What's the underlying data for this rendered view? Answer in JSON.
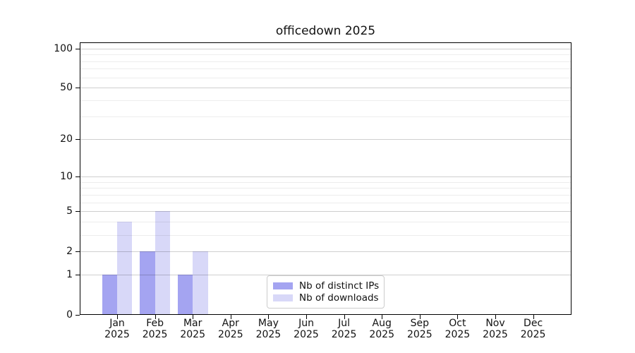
{
  "title": "officedown 2025",
  "colors": {
    "distinct_ips": "#a4a4f1",
    "downloads": "#d8d8f8",
    "grid_major": "#cfcfcf",
    "grid_minor": "#ededed",
    "axis": "#000000",
    "legend_border": "#cccccc"
  },
  "legend": {
    "items": [
      {
        "label": "Nb of distinct IPs",
        "color_key": "distinct_ips"
      },
      {
        "label": "Nb of downloads",
        "color_key": "downloads"
      }
    ]
  },
  "chart_data": {
    "type": "bar",
    "title": "officedown 2025",
    "categories": [
      "Jan 2025",
      "Feb 2025",
      "Mar 2025",
      "Apr 2025",
      "May 2025",
      "Jun 2025",
      "Jul 2025",
      "Aug 2025",
      "Sep 2025",
      "Oct 2025",
      "Nov 2025",
      "Dec 2025"
    ],
    "series": [
      {
        "name": "Nb of distinct IPs",
        "color": "#a4a4f1",
        "values": [
          1,
          2,
          1,
          0,
          0,
          0,
          0,
          0,
          0,
          0,
          0,
          0
        ]
      },
      {
        "name": "Nb of downloads",
        "color": "#d8d8f8",
        "values": [
          4,
          5,
          2,
          0,
          0,
          0,
          0,
          0,
          0,
          0,
          0,
          0
        ]
      }
    ],
    "xlabel": "",
    "ylabel": "",
    "y_scale": "log1p",
    "y_ticks": [
      0,
      1,
      2,
      5,
      10,
      20,
      50,
      100
    ],
    "y_tick_labels": [
      "0",
      "1",
      "2",
      "5",
      "10",
      "20",
      "50",
      "100"
    ],
    "y_minor_ticks": [
      3,
      4,
      6,
      7,
      8,
      9,
      30,
      40,
      60,
      70,
      80,
      90
    ],
    "ylim": [
      0,
      111
    ],
    "grid": true,
    "legend_position": "lower center"
  }
}
